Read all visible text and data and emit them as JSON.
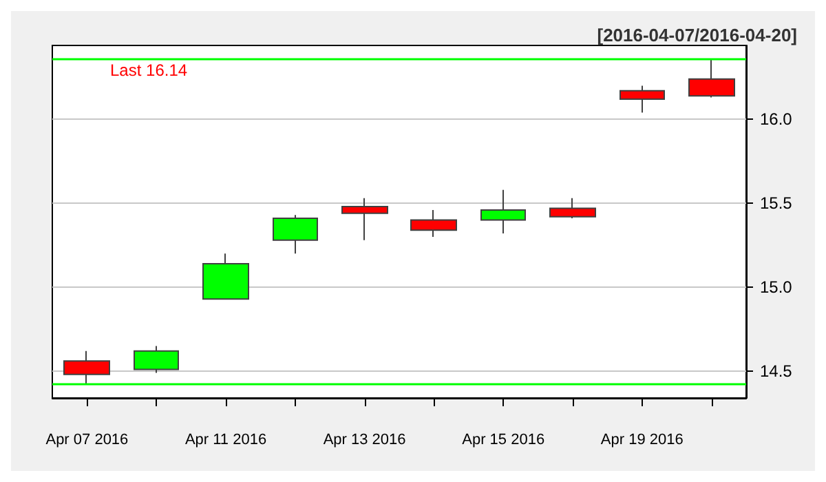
{
  "chart_data": {
    "type": "candlestick",
    "subtitle": "[2016-04-07/2016-04-20]",
    "annotations": [
      "Last 16.14"
    ],
    "categories": [
      "Apr 07 2016",
      null,
      "Apr 11 2016",
      null,
      "Apr 13 2016",
      null,
      "Apr 15 2016",
      null,
      "Apr 19 2016",
      null
    ],
    "ohlc": [
      [
        14.56,
        14.62,
        14.42,
        14.48
      ],
      [
        14.51,
        14.65,
        14.49,
        14.62
      ],
      [
        14.93,
        15.2,
        14.93,
        15.14
      ],
      [
        15.28,
        15.43,
        15.2,
        15.41
      ],
      [
        15.48,
        15.53,
        15.28,
        15.44
      ],
      [
        15.4,
        15.46,
        15.3,
        15.34
      ],
      [
        15.4,
        15.58,
        15.32,
        15.46
      ],
      [
        15.47,
        15.53,
        15.41,
        15.42
      ],
      [
        16.17,
        16.2,
        16.04,
        16.12
      ],
      [
        16.24,
        16.36,
        16.13,
        16.14
      ]
    ],
    "colors": [
      "#ff0000",
      "#00ff00",
      "#00ff00",
      "#00ff00",
      "#ff0000",
      "#ff0000",
      "#00ff00",
      "#ff0000",
      "#ff0000",
      "#ff0000"
    ],
    "ylim": [
      14.34,
      16.44
    ],
    "yticks": [
      {
        "value": 14.5,
        "label": "14.5"
      },
      {
        "value": 15,
        "label": "15.0"
      },
      {
        "value": 15.5,
        "label": "15.5"
      },
      {
        "value": 16,
        "label": "16.0"
      }
    ],
    "grid": "y",
    "ref_lines": [
      {
        "axis": "y",
        "value": 16.36,
        "color": "#00ff00"
      },
      {
        "axis": "y",
        "value": 14.42,
        "color": "#00ff00"
      }
    ]
  }
}
